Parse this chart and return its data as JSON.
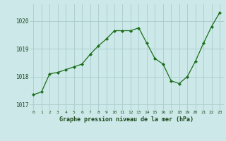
{
  "hours": [
    0,
    1,
    2,
    3,
    4,
    5,
    6,
    7,
    8,
    9,
    10,
    11,
    12,
    13,
    14,
    15,
    16,
    17,
    18,
    19,
    20,
    21,
    22,
    23
  ],
  "pressure": [
    1017.35,
    1017.45,
    1018.1,
    1018.15,
    1018.25,
    1018.35,
    1018.45,
    1018.8,
    1019.1,
    1019.35,
    1019.65,
    1019.65,
    1019.65,
    1019.75,
    1019.2,
    1018.65,
    1018.45,
    1017.85,
    1017.75,
    1018.0,
    1018.55,
    1019.2,
    1019.8,
    1020.3
  ],
  "line_color": "#1a6e1a",
  "marker": "D",
  "marker_size": 2.2,
  "bg_color": "#cce8e8",
  "grid_color": "#aacccc",
  "text_color": "#1a4a1a",
  "xlabel": "Graphe pression niveau de la mer (hPa)",
  "ylim": [
    1016.8,
    1020.6
  ],
  "yticks": [
    1017,
    1018,
    1019,
    1020
  ],
  "xticks": [
    0,
    1,
    2,
    3,
    4,
    5,
    6,
    7,
    8,
    9,
    10,
    11,
    12,
    13,
    14,
    15,
    16,
    17,
    18,
    19,
    20,
    21,
    22,
    23
  ]
}
